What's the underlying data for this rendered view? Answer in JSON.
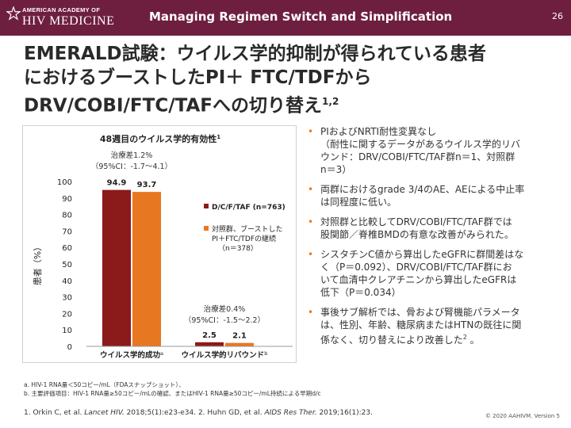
{
  "header": {
    "logo_line1": "AMERICAN ACADEMY OF",
    "logo_line2": "HIV MEDICINE",
    "title": "Managing Regimen Switch and Simplification",
    "page_number": "26",
    "background_color": "#6e1f3f"
  },
  "slide": {
    "title_line1": "EMERALD試験：ウイルス学的抑制が得られている患者",
    "title_line2": "におけるブーストしたPI＋ FTC/TDFから",
    "title_line3": "DRV/COBI/FTC/TAFへの切り替え",
    "title_sup": "1,2"
  },
  "chart_data": {
    "type": "bar",
    "title": "48週目のウイルス学的有効性",
    "title_sup": "1",
    "ylabel": "患者（%）",
    "ylim": [
      0,
      100
    ],
    "yticks": [
      0,
      10,
      20,
      30,
      40,
      50,
      60,
      70,
      80,
      90,
      100
    ],
    "categories": [
      "ウイルス学的成功",
      "ウイルス学的リバウンド"
    ],
    "category_sups": [
      "a",
      "b"
    ],
    "series": [
      {
        "name": "D/C/F/TAF (n=763)",
        "values": [
          94.9,
          2.5
        ],
        "color": "#8b1a1a"
      },
      {
        "name": "対照群、ブーストした PI＋FTC/TDFの継続 （n＝378）",
        "values": [
          93.7,
          2.1
        ],
        "color": "#e87722"
      }
    ],
    "value_labels": [
      [
        "94.9",
        "2.5"
      ],
      [
        "93.7",
        "2.1"
      ]
    ],
    "annotations": [
      {
        "line1": "治療差1.2%",
        "line2": "（95%CI：-1.7〜4.1）"
      },
      {
        "line1": "治療差0.4%",
        "line2": "（95%CI：-1.5〜2.2）"
      }
    ],
    "legend_series1": "D/C/F/TAF (n=763)",
    "legend_series2_line1": "対照群、ブーストした",
    "legend_series2_line2": "PI＋FTC/TDFの継続",
    "legend_series2_line3": "（n＝378）",
    "legend_position": "right",
    "grid": false
  },
  "bullets": [
    {
      "lines": [
        "PIおよびNRTI耐性変異なし",
        "（耐性に関するデータがあるウイルス学的リバ",
        "ウンド：DRV/COBI/FTC/TAF群n＝1、対照群",
        "n＝3）"
      ]
    },
    {
      "lines": [
        "両群におけるgrade 3/4のAE、AEによる中止率",
        "は同程度に低い。"
      ]
    },
    {
      "lines": [
        "対照群と比較してDRV/COBI/FTC/TAF群では",
        "股関節／脊椎BMDの有意な改善がみられた。"
      ]
    },
    {
      "lines": [
        "シスタチンC値から算出したeGFRに群間差はな",
        "く（P＝0.092）、DRV/COBI/FTC/TAF群にお",
        "いて血清中クレアチニンから算出したeGFRは",
        "低下（P＝0.034）"
      ]
    },
    {
      "lines": [
        "事後サブ解析では、骨および腎機能パラメータ",
        "は、性別、年齢、糖尿病またはHTNの既往に関",
        "係なく、切り替えにより改善した"
      ],
      "sup": "2",
      "tail": " 。"
    }
  ],
  "footnotes": {
    "a": "a. HIV-1 RNA量＜50コピー/mL（FDAスナップショット）、",
    "b": "b. 主要評価項目：HIV-1 RNA量≥50コピー/mLの確認、またはHIV-1 RNA量≥50コピー/mL持続による早期d/c"
  },
  "reference": {
    "part1": "1. Orkin C, et al. ",
    "journal1": "Lancet HIV.",
    "part2": " 2018;5(1):e23-e34. 2. Huhn GD, et al. ",
    "journal2": "AIDS Res Ther.",
    "part3": " 2019;16(1):23."
  },
  "copyright": "© 2020 AAHIVM. Version 5"
}
